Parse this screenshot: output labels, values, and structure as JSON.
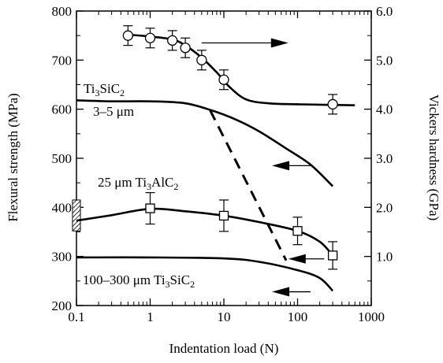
{
  "chart_data": {
    "type": "line",
    "title": "",
    "xlabel": "Indentation load (N)",
    "ylabel_left": "Flexural strength (MPa)",
    "ylabel_right": "Vickers hardness (GPa)",
    "x_scale": "log",
    "xlim": [
      0.1,
      1000
    ],
    "ylim_left": [
      200,
      800
    ],
    "ylim_right": [
      0,
      6.0
    ],
    "x_ticks": [
      "0.1",
      "1",
      "10",
      "100",
      "1000"
    ],
    "y_left_ticks": [
      "200",
      "300",
      "400",
      "500",
      "600",
      "700",
      "800"
    ],
    "y_right_ticks": [
      "1.0",
      "2.0",
      "3.0",
      "4.0",
      "5.0",
      "6.0"
    ],
    "grid": false,
    "annotations": {
      "ti3sic2_upper_prefix": "Ti",
      "ti3sic2_upper_sub1": "3",
      "ti3sic2_upper_mid": "SiC",
      "ti3sic2_upper_sub2": "2",
      "grain_size_upper": "3–5 μm",
      "ti3alc2_prefix": "25 μm Ti",
      "ti3alc2_sub1": "3",
      "ti3alc2_mid": "AlC",
      "ti3alc2_sub2": "2",
      "ti3sic2_lower_prefix": "100–300 μm Ti",
      "ti3sic2_lower_sub1": "3",
      "ti3sic2_lower_mid": "SiC",
      "ti3sic2_lower_sub2": "2"
    },
    "series": [
      {
        "axis": "right",
        "marker": "circle",
        "points": [
          {
            "x": 0.5,
            "y": 5.5,
            "err": 0.2
          },
          {
            "x": 1,
            "y": 5.45,
            "err": 0.2
          },
          {
            "x": 2,
            "y": 5.4,
            "err": 0.2
          },
          {
            "x": 3,
            "y": 5.25,
            "err": 0.2
          },
          {
            "x": 5,
            "y": 5.0,
            "err": 0.2
          },
          {
            "x": 10,
            "y": 4.6,
            "err": 0.2
          },
          {
            "x": 300,
            "y": 4.1,
            "err": 0.2
          }
        ],
        "curve": [
          [
            0.5,
            5.52
          ],
          [
            1,
            5.48
          ],
          [
            2,
            5.42
          ],
          [
            3,
            5.3
          ],
          [
            5,
            5.05
          ],
          [
            8,
            4.75
          ],
          [
            12,
            4.45
          ],
          [
            20,
            4.2
          ],
          [
            40,
            4.12
          ],
          [
            100,
            4.1
          ],
          [
            600,
            4.08
          ]
        ]
      },
      {
        "axis": "left",
        "curve": [
          [
            0.1,
            618
          ],
          [
            0.3,
            616
          ],
          [
            1,
            616
          ],
          [
            3,
            612
          ],
          [
            7,
            597
          ],
          [
            15,
            578
          ],
          [
            30,
            555
          ],
          [
            70,
            520
          ],
          [
            150,
            487
          ],
          [
            300,
            443
          ]
        ]
      },
      {
        "axis": "left",
        "marker": "square",
        "points": [
          {
            "x": 1,
            "y": 398,
            "err": 32
          },
          {
            "x": 10,
            "y": 383,
            "err": 32
          },
          {
            "x": 100,
            "y": 352,
            "err": 28
          },
          {
            "x": 300,
            "y": 302,
            "err": 28
          }
        ],
        "curve": [
          [
            0.1,
            373
          ],
          [
            0.3,
            384
          ],
          [
            1,
            397
          ],
          [
            3,
            392
          ],
          [
            10,
            383
          ],
          [
            30,
            370
          ],
          [
            100,
            352
          ],
          [
            200,
            330
          ],
          [
            300,
            302
          ]
        ]
      },
      {
        "axis": "left",
        "curve": [
          [
            0.1,
            298
          ],
          [
            1,
            298
          ],
          [
            10,
            296
          ],
          [
            30,
            289
          ],
          [
            100,
            272
          ],
          [
            200,
            256
          ],
          [
            300,
            230
          ]
        ]
      },
      {
        "axis": "left",
        "style": "dashed",
        "curve": [
          [
            6.5,
            598
          ],
          [
            70,
            292
          ]
        ]
      }
    ],
    "arrows": [
      {
        "axis": "right",
        "direction": "right",
        "from_x": 5,
        "to_x": 75,
        "y": 5.35
      },
      {
        "axis": "left",
        "direction": "left",
        "from_x": 150,
        "to_x": 45,
        "y": 485
      },
      {
        "axis": "left",
        "direction": "left",
        "from_x": 230,
        "to_x": 75,
        "y": 295
      },
      {
        "axis": "left",
        "direction": "left",
        "from_x": 150,
        "to_x": 45,
        "y": 228
      }
    ],
    "hatched_band": {
      "x": 0.1,
      "y_min": 352,
      "y_max": 415
    }
  }
}
